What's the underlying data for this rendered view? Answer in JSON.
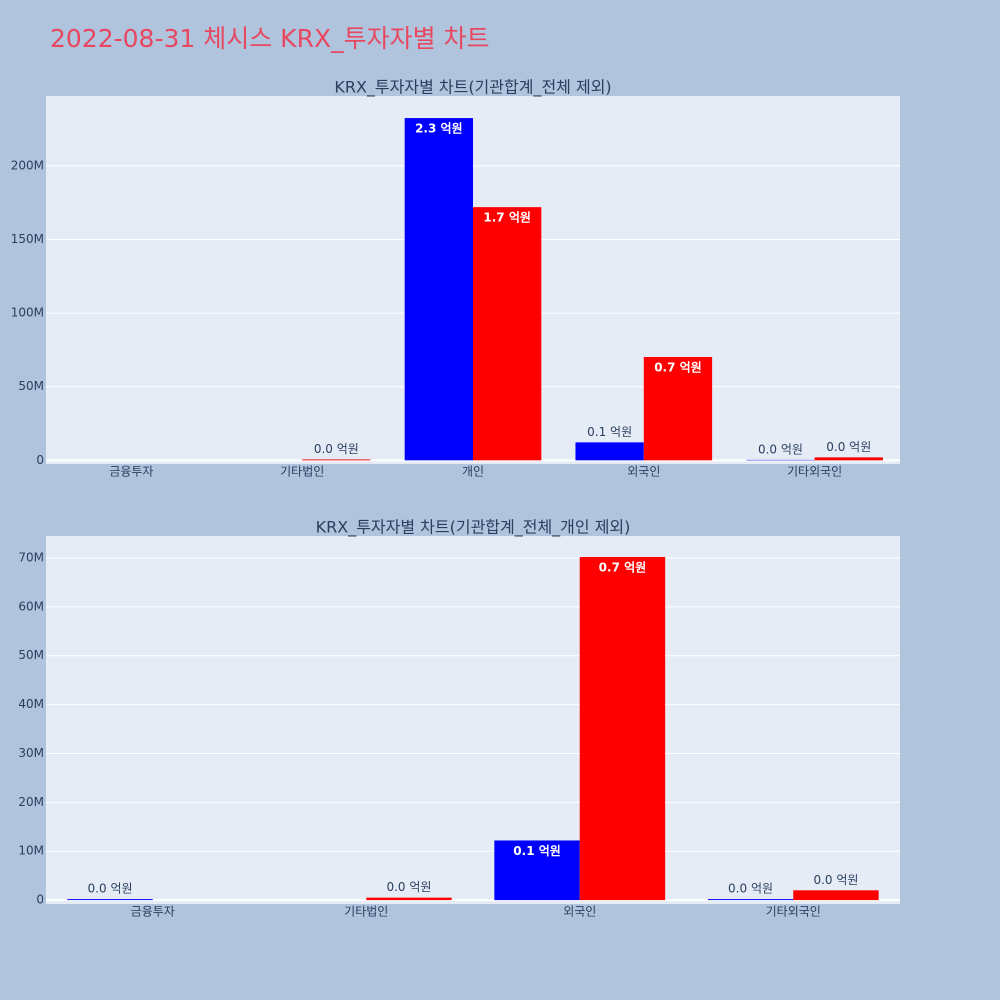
{
  "title": "2022-08-31 체시스 KRX_투자자별 차트",
  "chart_data": [
    {
      "type": "bar",
      "title": "KRX_투자자별 차트(기관합계_전체 제외)",
      "categories": [
        "금융투자",
        "기타법인",
        "개인",
        "외국인",
        "기타외국인"
      ],
      "series": [
        {
          "color": "#0000ff",
          "values": [
            0,
            0,
            232500000,
            12200000,
            300000
          ],
          "value_labels": [
            null,
            null,
            "2.3 억원",
            "0.1 억원",
            "0.0 억원"
          ]
        },
        {
          "color": "#ff0000",
          "values": [
            0,
            600000,
            172000000,
            70200000,
            2000000
          ],
          "value_labels": [
            null,
            "0.0 억원",
            "1.7 억원",
            "0.7 억원",
            "0.0 억원"
          ]
        }
      ],
      "ylim": [
        -2500000,
        247500000
      ],
      "yticks": [
        0,
        {
          "value": 50000000,
          "label": "50M"
        },
        {
          "value": 100000000,
          "label": "100M"
        },
        {
          "value": 150000000,
          "label": "150M"
        },
        {
          "value": 200000000,
          "label": "200M"
        }
      ],
      "grid": true
    },
    {
      "type": "bar",
      "title": "KRX_투자자별 차트(기관합계_전체_개인 제외)",
      "categories": [
        "금융투자",
        "기타법인",
        "외국인",
        "기타외국인"
      ],
      "series": [
        {
          "color": "#0000ff",
          "values": [
            200000,
            0,
            12200000,
            200000
          ],
          "value_labels": [
            "0.0 억원",
            null,
            "0.1 억원",
            "0.0 억원"
          ]
        },
        {
          "color": "#ff0000",
          "values": [
            0,
            500000,
            70200000,
            2000000
          ],
          "value_labels": [
            null,
            "0.0 억원",
            "0.7 억원",
            "0.0 억원"
          ]
        }
      ],
      "ylim": [
        -800000,
        74500000
      ],
      "yticks": [
        0,
        {
          "value": 10000000,
          "label": "10M"
        },
        {
          "value": 20000000,
          "label": "20M"
        },
        {
          "value": 30000000,
          "label": "30M"
        },
        {
          "value": 40000000,
          "label": "40M"
        },
        {
          "value": 50000000,
          "label": "50M"
        },
        {
          "value": 60000000,
          "label": "60M"
        },
        {
          "value": 70000000,
          "label": "70M"
        }
      ],
      "grid": true
    }
  ]
}
